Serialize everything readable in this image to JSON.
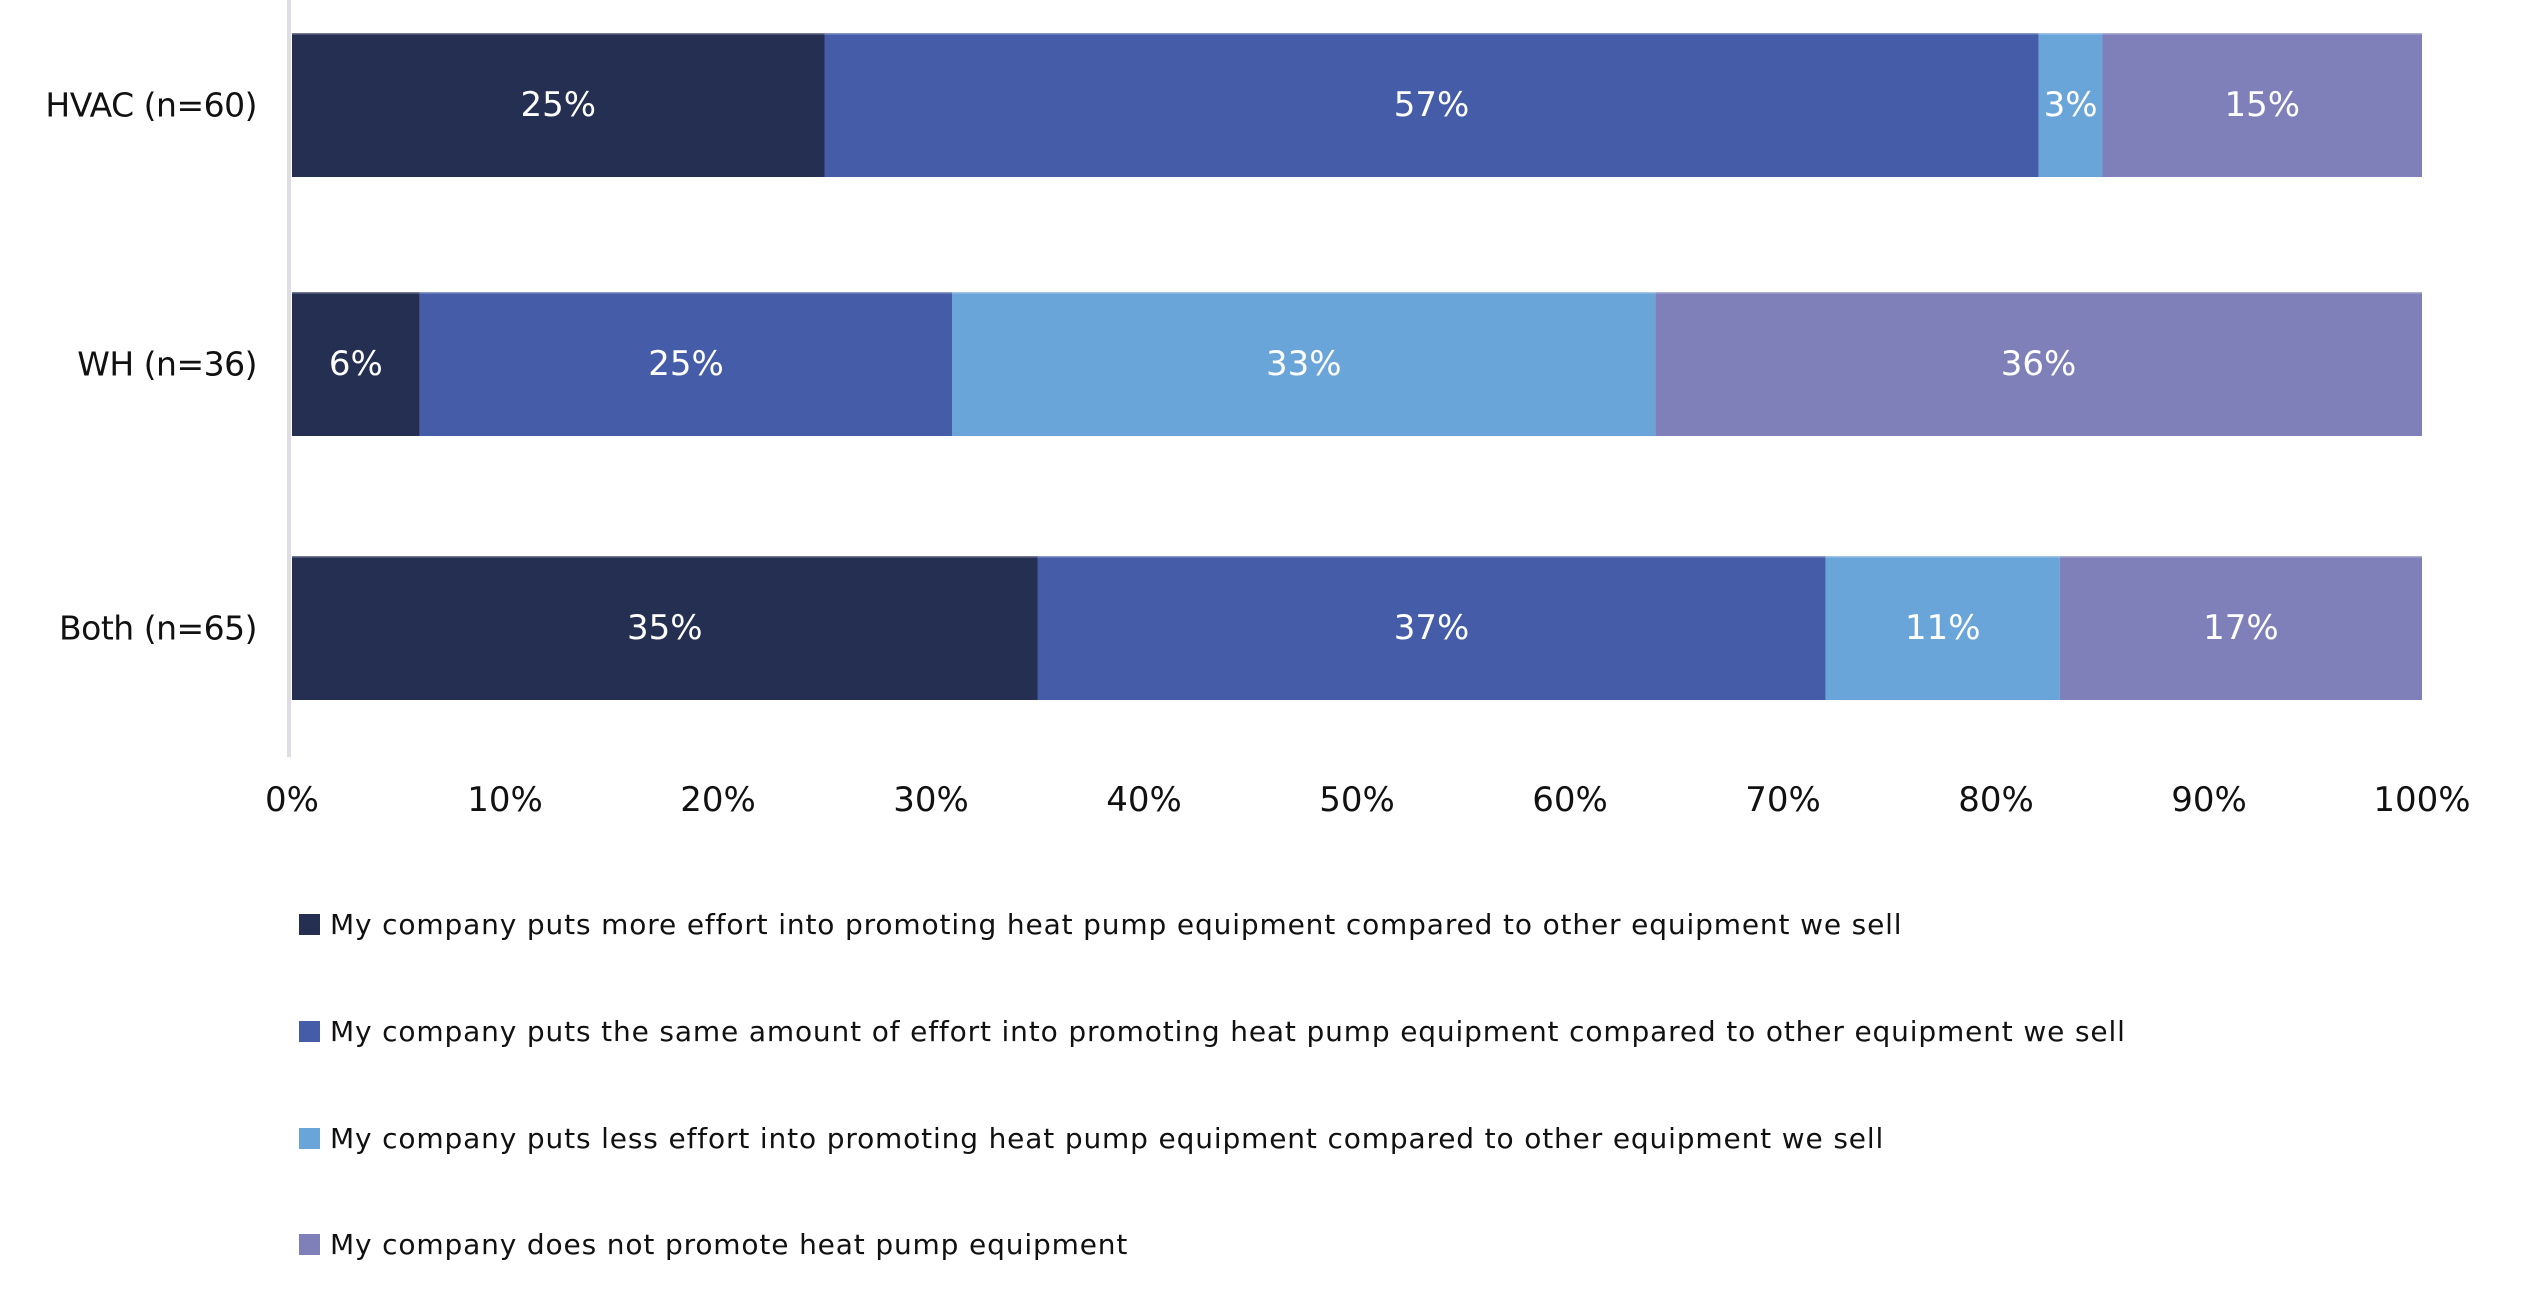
{
  "chart_data": {
    "type": "bar",
    "orientation": "horizontal",
    "stacked": true,
    "percent_stacked": true,
    "title": "",
    "xlabel": "",
    "ylabel": "",
    "xlim": [
      0,
      100
    ],
    "x_ticks": [
      "0%",
      "10%",
      "20%",
      "30%",
      "40%",
      "50%",
      "60%",
      "70%",
      "80%",
      "90%",
      "100%"
    ],
    "grid": false,
    "legend_position": "bottom",
    "categories": [
      "HVAC (n=60)",
      "WH (n=36)",
      "Both (n=65)"
    ],
    "series": [
      {
        "name": "My company puts more effort into promoting heat pump equipment compared to other equipment we sell",
        "color": "#252F52",
        "values": [
          25,
          6,
          35
        ],
        "labels": [
          "25%",
          "6%",
          "35%"
        ]
      },
      {
        "name": "My company puts the same amount of effort into promoting heat pump equipment compared to other equipment we sell",
        "color": "#455DA8",
        "values": [
          57,
          25,
          37
        ],
        "labels": [
          "57%",
          "25%",
          "37%"
        ]
      },
      {
        "name": "My company puts less effort into promoting heat pump equipment compared to other equipment we sell",
        "color": "#6AA5D9",
        "values": [
          3,
          33,
          11
        ],
        "labels": [
          "3%",
          "33%",
          "11%"
        ]
      },
      {
        "name": "My company does not promote heat pump equipment",
        "color": "#7F80BA",
        "values": [
          15,
          36,
          17
        ],
        "labels": [
          "15%",
          "36%",
          "17%"
        ]
      }
    ]
  }
}
